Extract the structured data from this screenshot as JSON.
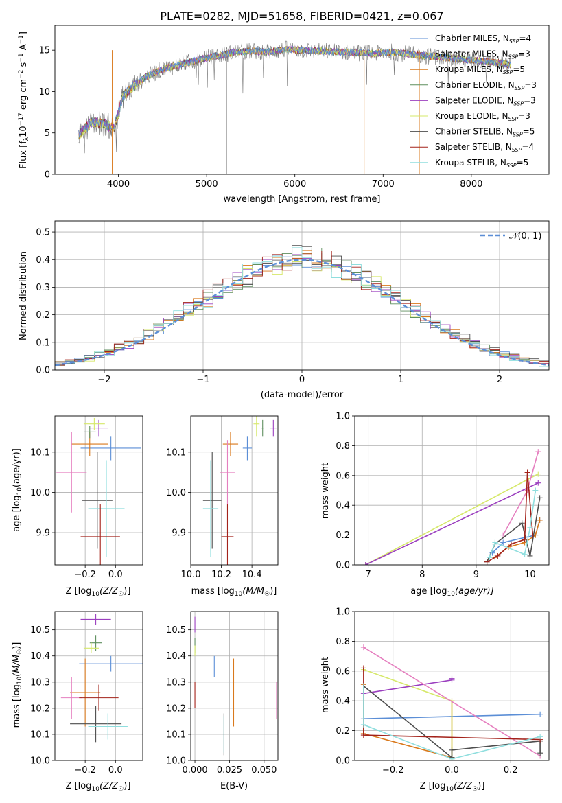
{
  "title": "PLATE=0282, MJD=51658, FIBERID=0421, z=0.067",
  "colors": {
    "Chabrier MILES": "#5b8ed6",
    "Salpeter MILES": "#7a7a7a",
    "Kroupa MILES": "#d9791c",
    "Chabrier ELODIE": "#5f8f5f",
    "Salpeter ELODIE": "#9b3fbf",
    "Kroupa ELODIE": "#d6e86a",
    "Chabrier STELIB": "#4d4d4d",
    "Salpeter STELIB": "#a3221a",
    "Kroupa STELIB": "#8fdede",
    "pink": "#e57fbf"
  },
  "chart_data": [
    {
      "type": "line",
      "panel": "spectrum",
      "xlabel": "wavelength [Angstrom, rest frame]",
      "ylabel": "Flux [f",
      "ylabel_sub": "λ",
      "ylabel_rest": "10",
      "ylabel_sup1": "−17",
      "ylabel_rest2": " erg cm",
      "ylabel_sup2": "−2",
      "ylabel_rest3": " s",
      "ylabel_sup3": "−1",
      "ylabel_rest4": " A",
      "ylabel_sup4": "−1",
      "ylabel_end": "]",
      "xlim": [
        3280,
        8880
      ],
      "ylim": [
        0,
        18
      ],
      "xticks": [
        4000,
        5000,
        6000,
        7000,
        8000
      ],
      "yticks": [
        0,
        5,
        10,
        15
      ],
      "x": [
        3550,
        3700,
        3850,
        3950,
        4050,
        4150,
        4300,
        4500,
        4700,
        4900,
        5100,
        5300,
        5500,
        5700,
        5900,
        6100,
        6300,
        6500,
        6700,
        6900,
        7100,
        7300,
        7500,
        7700,
        7900,
        8100,
        8300,
        8450
      ],
      "values": [
        4.8,
        6.3,
        6.1,
        5.5,
        9.4,
        10.4,
        11.7,
        12.7,
        13.3,
        13.8,
        14.3,
        14.7,
        14.9,
        14.8,
        15.1,
        15.0,
        14.9,
        14.8,
        14.7,
        14.6,
        14.8,
        14.5,
        14.3,
        14.1,
        13.9,
        13.7,
        13.5,
        13.2
      ],
      "legend": [
        {
          "label": "Chabrier MILES, N",
          "sub": "SSP",
          "tail": "=4"
        },
        {
          "label": "Salpeter MILES, N",
          "sub": "SSP",
          "tail": "=3"
        },
        {
          "label": "Kroupa MILES, N",
          "sub": "SSP",
          "tail": "=5"
        },
        {
          "label": "Chabrier ELODIE, N",
          "sub": "SSP",
          "tail": "=3"
        },
        {
          "label": "Salpeter ELODIE, N",
          "sub": "SSP",
          "tail": "=3"
        },
        {
          "label": "Kroupa ELODIE, N",
          "sub": "SSP",
          "tail": "=3"
        },
        {
          "label": "Chabrier STELIB, N",
          "sub": "SSP",
          "tail": "=5"
        },
        {
          "label": "Salpeter STELIB, N",
          "sub": "SSP",
          "tail": "=4"
        },
        {
          "label": "Kroupa STELIB, N",
          "sub": "SSP",
          "tail": "=5"
        }
      ],
      "legend_position": "top-right"
    },
    {
      "type": "bar",
      "panel": "residuals",
      "xlabel": "(data-model)/error",
      "ylabel": "Normed distribution",
      "xlim": [
        -2.5,
        2.5
      ],
      "ylim": [
        0,
        0.54
      ],
      "xticks": [
        -2,
        -1,
        0,
        1,
        2
      ],
      "yticks": [
        0.0,
        0.1,
        0.2,
        0.3,
        0.4,
        0.5
      ],
      "bin_width": 0.1,
      "normal_label": "𝒩(0, 1)",
      "grid": true,
      "legend_position": "top-right"
    },
    {
      "type": "scatter",
      "panel": "age-vs-Z",
      "xlabel": "Z [log",
      "xlabel_sub": "10",
      "xlabel_tail": "(Z/Z",
      "xlabel_sub2": "☉",
      "xlabel_end": ")]",
      "ylabel": "age  [log",
      "ylabel_sub": "10",
      "ylabel_tail": "(age/yr)]",
      "xlim": [
        -0.4,
        0.18
      ],
      "ylim": [
        9.82,
        10.19
      ],
      "xticks": [
        -0.2,
        0.0
      ],
      "yticks": [
        9.9,
        10.0,
        10.1
      ],
      "points": [
        {
          "series": "Chabrier MILES",
          "x": -0.03,
          "y": 10.11,
          "xerr": 0.2,
          "yerr": 0.03
        },
        {
          "series": "Kroupa MILES",
          "x": -0.17,
          "y": 10.12,
          "xerr": 0.12,
          "yerr": 0.03
        },
        {
          "series": "Salpeter ELODIE",
          "x": -0.11,
          "y": 10.16,
          "xerr": 0.06,
          "yerr": 0.02
        },
        {
          "series": "Kroupa ELODIE",
          "x": -0.14,
          "y": 10.17,
          "xerr": 0.07,
          "yerr": 0.015
        },
        {
          "series": "Chabrier ELODIE",
          "x": -0.17,
          "y": 10.15,
          "xerr": 0.04,
          "yerr": 0.015
        },
        {
          "series": "pink",
          "x": -0.29,
          "y": 10.05,
          "xerr": 0.1,
          "yerr": 0.1
        },
        {
          "series": "Chabrier STELIB",
          "x": -0.12,
          "y": 9.98,
          "xerr": 0.1,
          "yerr": 0.12
        },
        {
          "series": "Kroupa STELIB",
          "x": -0.06,
          "y": 9.96,
          "xerr": 0.12,
          "yerr": 0.12
        },
        {
          "series": "Salpeter STELIB",
          "x": -0.1,
          "y": 9.89,
          "xerr": 0.13,
          "yerr": 0.08
        }
      ]
    },
    {
      "type": "scatter",
      "panel": "age-vs-mass",
      "xlabel": "mass [log",
      "xlabel_sub": "10",
      "xlabel_tail": "(M/M",
      "xlabel_sub2": "☉",
      "xlabel_end": ")]",
      "xlim": [
        10.0,
        10.57
      ],
      "ylim": [
        9.82,
        10.19
      ],
      "xticks": [
        10.0,
        10.2,
        10.4
      ],
      "yticks": [
        9.9,
        10.0,
        10.1
      ],
      "points": [
        {
          "series": "Chabrier MILES",
          "x": 10.37,
          "y": 10.11,
          "xerr": 0.03,
          "yerr": 0.03
        },
        {
          "series": "Kroupa MILES",
          "x": 10.26,
          "y": 10.12,
          "xerr": 0.05,
          "yerr": 0.03
        },
        {
          "series": "Salpeter ELODIE",
          "x": 10.54,
          "y": 10.16,
          "xerr": 0.02,
          "yerr": 0.02
        },
        {
          "series": "Kroupa ELODIE",
          "x": 10.43,
          "y": 10.17,
          "xerr": 0.02,
          "yerr": 0.03
        },
        {
          "series": "Chabrier ELODIE",
          "x": 10.47,
          "y": 10.16,
          "xerr": 0.01,
          "yerr": 0.02
        },
        {
          "series": "pink",
          "x": 10.24,
          "y": 10.05,
          "xerr": 0.05,
          "yerr": 0.08
        },
        {
          "series": "Chabrier STELIB",
          "x": 10.14,
          "y": 9.98,
          "xerr": 0.06,
          "yerr": 0.12
        },
        {
          "series": "Kroupa STELIB",
          "x": 10.13,
          "y": 9.96,
          "xerr": 0.05,
          "yerr": 0.12
        },
        {
          "series": "Salpeter STELIB",
          "x": 10.24,
          "y": 9.89,
          "xerr": 0.04,
          "yerr": 0.08
        }
      ]
    },
    {
      "type": "line",
      "panel": "weight-vs-age",
      "xlabel": "age  [log",
      "xlabel_sub": "10",
      "xlabel_tail": "(age/yr)]",
      "ylabel": "mass weight",
      "xlim": [
        6.75,
        10.35
      ],
      "ylim": [
        0.0,
        1.0
      ],
      "xticks": [
        7,
        8,
        9,
        10
      ],
      "yticks": [
        0.0,
        0.2,
        0.4,
        0.6,
        0.8,
        1.0
      ],
      "series": [
        {
          "name": "Chabrier MILES",
          "x": [
            9.3,
            9.5,
            10.1,
            10.18
          ],
          "y": [
            0.08,
            0.15,
            0.2,
            0.3
          ]
        },
        {
          "name": "Kroupa MILES",
          "x": [
            9.35,
            9.6,
            9.9,
            10.1,
            10.18
          ],
          "y": [
            0.05,
            0.12,
            0.15,
            0.2,
            0.3
          ]
        },
        {
          "name": "Kroupa ELODIE",
          "x": [
            6.95,
            10.15
          ],
          "y": [
            0.0,
            0.61
          ]
        },
        {
          "name": "Salpeter ELODIE",
          "x": [
            6.95,
            10.15
          ],
          "y": [
            0.0,
            0.55
          ]
        },
        {
          "name": "pink",
          "x": [
            9.5,
            9.95,
            10.15
          ],
          "y": [
            0.2,
            0.5,
            0.76
          ]
        },
        {
          "name": "Chabrier STELIB",
          "x": [
            9.2,
            9.35,
            9.85,
            10.0,
            10.18
          ],
          "y": [
            0.02,
            0.14,
            0.28,
            0.06,
            0.45
          ]
        },
        {
          "name": "Salpeter STELIB",
          "x": [
            9.2,
            9.4,
            9.65,
            9.9,
            9.95,
            10.05
          ],
          "y": [
            0.02,
            0.06,
            0.14,
            0.17,
            0.62,
            0.2
          ]
        },
        {
          "name": "Kroupa STELIB",
          "x": [
            9.25,
            9.35,
            9.9,
            10.0,
            10.1
          ],
          "y": [
            0.05,
            0.15,
            0.07,
            0.25,
            0.5
          ]
        }
      ]
    },
    {
      "type": "scatter",
      "panel": "mass-vs-Z",
      "xlabel": "Z [log",
      "xlabel_sub": "10",
      "xlabel_tail": "(Z/Z",
      "xlabel_sub2": "☉",
      "xlabel_end": ")]",
      "ylabel": "mass [log",
      "ylabel_sub": "10",
      "ylabel_tail": "(M/M",
      "ylabel_sub2": "☉",
      "ylabel_end": ")]",
      "xlim": [
        -0.4,
        0.18
      ],
      "ylim": [
        10.0,
        10.57
      ],
      "xticks": [
        -0.2,
        0.0
      ],
      "yticks": [
        10.0,
        10.1,
        10.2,
        10.3,
        10.4,
        10.5
      ],
      "points": [
        {
          "series": "Salpeter ELODIE",
          "x": -0.13,
          "y": 10.54,
          "xerr": 0.1,
          "yerr": 0.02
        },
        {
          "series": "Chabrier ELODIE",
          "x": -0.13,
          "y": 10.45,
          "xerr": 0.04,
          "yerr": 0.03
        },
        {
          "series": "Kroupa ELODIE",
          "x": -0.16,
          "y": 10.43,
          "xerr": 0.05,
          "yerr": 0.02
        },
        {
          "series": "Chabrier MILES",
          "x": -0.03,
          "y": 10.37,
          "xerr": 0.21,
          "yerr": 0.03
        },
        {
          "series": "Kroupa MILES",
          "x": -0.2,
          "y": 10.26,
          "xerr": 0.1,
          "yerr": 0.13
        },
        {
          "series": "pink",
          "x": -0.29,
          "y": 10.24,
          "xerr": 0.07,
          "yerr": 0.08
        },
        {
          "series": "Salpeter STELIB",
          "x": -0.11,
          "y": 10.24,
          "xerr": 0.13,
          "yerr": 0.05
        },
        {
          "series": "Chabrier STELIB",
          "x": -0.13,
          "y": 10.14,
          "xerr": 0.17,
          "yerr": 0.07
        },
        {
          "series": "Kroupa STELIB",
          "x": -0.05,
          "y": 10.13,
          "xerr": 0.13,
          "yerr": 0.05
        }
      ]
    },
    {
      "type": "scatter",
      "panel": "mass-vs-ebv",
      "xlabel": "E(B-V)",
      "xlim": [
        -0.003,
        0.06
      ],
      "ylim": [
        10.0,
        10.57
      ],
      "xticks": [
        0.0,
        0.025,
        0.05
      ],
      "yticks": [
        10.0,
        10.1,
        10.2,
        10.3,
        10.4,
        10.5
      ],
      "points": [
        {
          "series": "Salpeter ELODIE",
          "x": 0.0,
          "y": 10.52,
          "yerr": 0.03
        },
        {
          "series": "Chabrier ELODIE",
          "x": 0.0,
          "y": 10.44,
          "yerr": 0.03
        },
        {
          "series": "Kroupa ELODIE",
          "x": 0.0,
          "y": 10.42,
          "yerr": 0.02
        },
        {
          "series": "Salpeter STELIB",
          "x": 0.0,
          "y": 10.25,
          "yerr": 0.05
        },
        {
          "series": "Chabrier MILES",
          "x": 0.014,
          "y": 10.36,
          "yerr": 0.04
        },
        {
          "series": "Kroupa MILES",
          "x": 0.028,
          "y": 10.26,
          "yerr": 0.13
        },
        {
          "series": "Chabrier STELIB",
          "x": 0.021,
          "y": 10.1,
          "yerr": 0.08
        },
        {
          "series": "Kroupa STELIB",
          "x": 0.021,
          "y": 10.1,
          "yerr": 0.07
        },
        {
          "series": "pink",
          "x": 0.059,
          "y": 10.23,
          "yerr": 0.07
        }
      ]
    },
    {
      "type": "line",
      "panel": "weight-vs-Z",
      "xlabel": "Z [log",
      "xlabel_sub": "10",
      "xlabel_tail": "(Z/Z",
      "xlabel_sub2": "☉",
      "xlabel_end": ")]",
      "ylabel": "mass weight",
      "xlim": [
        -0.33,
        0.33
      ],
      "ylim": [
        0.0,
        1.0
      ],
      "xticks": [
        -0.2,
        0.0,
        0.2
      ],
      "yticks": [
        0.0,
        0.2,
        0.4,
        0.6,
        0.8,
        1.0
      ],
      "series": [
        {
          "name": "Chabrier MILES",
          "x": [
            -0.3,
            0.3
          ],
          "y": [
            0.28,
            0.31
          ]
        },
        {
          "name": "Kroupa MILES",
          "x": [
            -0.3,
            -0.3,
            0.0,
            0.0
          ],
          "y": [
            0.51,
            0.18,
            0.02,
            0.4
          ]
        },
        {
          "name": "Kroupa ELODIE",
          "x": [
            -0.3,
            0.0,
            0.0
          ],
          "y": [
            0.61,
            0.4,
            0.01
          ]
        },
        {
          "name": "Salpeter ELODIE",
          "x": [
            -0.3,
            0.0,
            0.0
          ],
          "y": [
            0.45,
            0.54,
            0.55
          ]
        },
        {
          "name": "pink",
          "x": [
            -0.3,
            0.3
          ],
          "y": [
            0.76,
            0.03
          ]
        },
        {
          "name": "Chabrier STELIB",
          "x": [
            -0.3,
            0.0,
            0.0,
            0.3,
            0.3
          ],
          "y": [
            0.5,
            0.02,
            0.07,
            0.13,
            0.05
          ]
        },
        {
          "name": "Salpeter STELIB",
          "x": [
            -0.3,
            -0.3,
            0.3
          ],
          "y": [
            0.62,
            0.17,
            0.14
          ]
        },
        {
          "name": "Kroupa STELIB",
          "x": [
            -0.3,
            -0.3,
            0.0,
            0.3
          ],
          "y": [
            0.5,
            0.24,
            0.01,
            0.16
          ]
        }
      ]
    }
  ]
}
